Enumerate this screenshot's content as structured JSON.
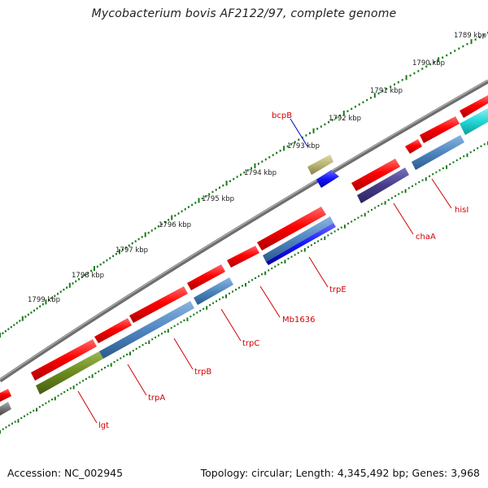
{
  "title": "Mycobacterium bovis AF2122/97, complete genome",
  "footer": {
    "accession": "Accession: NC_002945",
    "topology": "Topology: circular; Length: 4,345,492 bp; Genes: 3,968"
  },
  "ticks": [
    {
      "label": "1789 kbp"
    },
    {
      "label": "1790 kbp"
    },
    {
      "label": "1791 kbp"
    },
    {
      "label": "1792 kbp"
    },
    {
      "label": "1793 kbp"
    },
    {
      "label": "1794 kbp"
    },
    {
      "label": "1795 kbp"
    },
    {
      "label": "1796 kbp"
    },
    {
      "label": "1797 kbp"
    },
    {
      "label": "1798 kbp"
    },
    {
      "label": "1799 kbp"
    }
  ],
  "genes": [
    {
      "label": "bcpB",
      "color": "#0000cc"
    },
    {
      "label": "hisI",
      "color": "#d20000"
    },
    {
      "label": "chaA",
      "color": "#d20000"
    },
    {
      "label": "trpE",
      "color": "#d20000"
    },
    {
      "label": "Mb1636",
      "color": "#d20000"
    },
    {
      "label": "trpC",
      "color": "#d20000"
    },
    {
      "label": "trpB",
      "color": "#d20000"
    },
    {
      "label": "trpA",
      "color": "#d20000"
    },
    {
      "label": "lgt",
      "color": "#d20000"
    }
  ],
  "colors": {
    "cds": "#ff0000",
    "cog_amino_acid": "#4f86c0",
    "cog_blue": "#1414ff",
    "cog_purple": "#453d8a",
    "cog_olive": "#6b8a1e",
    "cog_cyan": "#22d6d6",
    "cog_khaki": "#b8b474",
    "backbone": "#888888",
    "ticks": "#1a7a1a"
  }
}
